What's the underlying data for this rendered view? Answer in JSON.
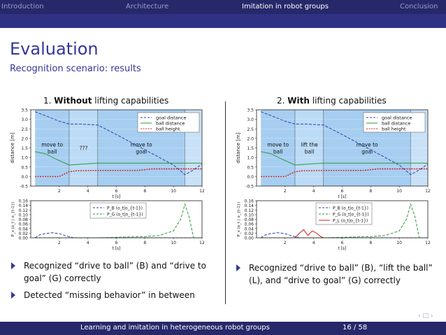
{
  "nav": {
    "items": [
      {
        "label": "Introduction",
        "active": false
      },
      {
        "label": "Architecture",
        "active": false
      },
      {
        "label": "Imitation in robot groups",
        "active": true
      },
      {
        "label": "Conclusion",
        "active": false
      }
    ]
  },
  "slide": {
    "title": "Evaluation",
    "subtitle": "Recognition scenario: results"
  },
  "panels": [
    {
      "number": "1.",
      "bold": "Without",
      "rest": "lifting capabilities"
    },
    {
      "number": "2.",
      "bold": "With",
      "rest": "lifting capabilities"
    }
  ],
  "bullets_left": [
    "Recognized “drive to ball” (B) and “drive to goal” (G) correctly",
    "Detected “missing behavior” in between"
  ],
  "bullets_right": [
    "Recognized “drive to ball” (B), “lift the ball” (L), and “drive to goal” (G) correctly"
  ],
  "footer": {
    "title": "Learning and imitation in heterogeneous robot groups",
    "page": "16 / 58"
  },
  "colors": {
    "accent": "#35359a",
    "bar": "#27286a",
    "goal_distance": "#2b3fb0",
    "ball_distance": "#2e9a3a",
    "ball_height": "#d41f1f",
    "highlight": "#9cc9f0"
  },
  "chart_data": [
    {
      "type": "line",
      "xlabel": "t [s]",
      "ylabel": "distance [m]",
      "xlim": [
        0,
        12
      ],
      "ylim": [
        -0.5,
        3.5
      ],
      "xticks": [
        "2",
        "4",
        "6",
        "8",
        "10",
        "12"
      ],
      "yticks": [
        "-0.5",
        "0.0",
        "0.5",
        "1.0",
        "1.5",
        "2.0",
        "2.5",
        "3.0",
        "3.5"
      ],
      "legend": "top-right",
      "regions": [
        {
          "label": "move to\nball",
          "x": [
            0.3,
            2.7
          ]
        },
        {
          "label": "???",
          "x": [
            2.7,
            4.7
          ]
        },
        {
          "label": "move to\ngoal",
          "x": [
            4.7,
            10.8
          ]
        }
      ],
      "series": [
        {
          "name": "goal distance",
          "style": "dashed",
          "x": [
            0.3,
            1.0,
            2.0,
            2.7,
            3.5,
            4.7,
            6,
            7,
            8,
            9,
            10,
            10.8,
            11.3,
            12
          ],
          "y": [
            3.4,
            3.2,
            2.9,
            2.75,
            2.75,
            2.7,
            2.2,
            1.8,
            1.4,
            1.0,
            0.6,
            0.1,
            0.3,
            0.65
          ]
        },
        {
          "name": "ball distance",
          "style": "solid",
          "x": [
            0.3,
            1.0,
            1.8,
            2.7,
            3.5,
            4.7,
            6,
            8,
            10,
            12
          ],
          "y": [
            1.3,
            1.2,
            0.9,
            0.6,
            0.65,
            0.7,
            0.7,
            0.7,
            0.7,
            0.7
          ]
        },
        {
          "name": "ball height",
          "style": "marker",
          "x": [
            0.3,
            2.0,
            2.7,
            3.2,
            4.7,
            6,
            7.5,
            8.5,
            9.5,
            10.8,
            12
          ],
          "y": [
            0.0,
            0.0,
            0.25,
            0.3,
            0.32,
            0.32,
            0.32,
            0.4,
            0.4,
            0.4,
            0.4
          ]
        }
      ]
    },
    {
      "type": "line",
      "xlabel": "t [s]",
      "ylabel": "P_x (o_t | o_{t-1})",
      "xlim": [
        0,
        12
      ],
      "ylim": [
        0,
        0.16
      ],
      "xticks": [
        "2",
        "4",
        "6",
        "8",
        "10",
        "12"
      ],
      "yticks": [
        "0.00",
        "0.02",
        "0.04",
        "0.06",
        "0.08",
        "0.10",
        "0.12",
        "0.14",
        "0.16"
      ],
      "legend": "top-center",
      "series": [
        {
          "name": "P_B (o_t|o_{t-1})",
          "style": "dashed",
          "x": [
            0.3,
            0.6,
            1.0,
            1.5,
            2.0,
            2.5,
            3.0,
            12
          ],
          "y": [
            0.0,
            0.012,
            0.018,
            0.022,
            0.018,
            0.008,
            0.0,
            0.0
          ]
        },
        {
          "name": "P_G (o_t|o_{t-1})",
          "style": "dashed",
          "x": [
            0.3,
            4.7,
            6,
            8,
            9,
            10,
            10.5,
            10.8,
            11.1,
            11.4,
            12
          ],
          "y": [
            0.0,
            0.0,
            0.002,
            0.005,
            0.01,
            0.03,
            0.08,
            0.145,
            0.09,
            0.0,
            0.0
          ]
        }
      ]
    },
    {
      "type": "line",
      "xlabel": "t [s]",
      "ylabel": "distance [m]",
      "xlim": [
        0,
        12
      ],
      "ylim": [
        -0.5,
        3.5
      ],
      "xticks": [
        "2",
        "4",
        "6",
        "8",
        "10",
        "12"
      ],
      "yticks": [
        "-0.5",
        "0.0",
        "0.5",
        "1.0",
        "1.5",
        "2.0",
        "2.5",
        "3.0",
        "3.5"
      ],
      "legend": "top-right",
      "regions": [
        {
          "label": "move to\nball",
          "x": [
            0.3,
            2.7
          ]
        },
        {
          "label": "lift the\nball",
          "x": [
            2.7,
            4.7
          ]
        },
        {
          "label": "move to\ngoal",
          "x": [
            4.7,
            10.8
          ]
        }
      ],
      "series": [
        {
          "name": "goal distance",
          "style": "dashed",
          "x": [
            0.3,
            1.0,
            2.0,
            2.7,
            3.5,
            4.7,
            6,
            7,
            8,
            9,
            10,
            10.8,
            11.3,
            12
          ],
          "y": [
            3.4,
            3.2,
            2.9,
            2.75,
            2.75,
            2.7,
            2.2,
            1.8,
            1.4,
            1.0,
            0.6,
            0.1,
            0.3,
            0.65
          ]
        },
        {
          "name": "ball distance",
          "style": "solid",
          "x": [
            0.3,
            1.0,
            1.8,
            2.7,
            3.5,
            4.7,
            6,
            8,
            10,
            12
          ],
          "y": [
            1.3,
            1.2,
            0.9,
            0.6,
            0.65,
            0.7,
            0.7,
            0.7,
            0.7,
            0.7
          ]
        },
        {
          "name": "ball height",
          "style": "marker",
          "x": [
            0.3,
            2.0,
            2.7,
            3.2,
            4.7,
            6,
            7.5,
            8.5,
            9.5,
            10.8,
            12
          ],
          "y": [
            0.0,
            0.0,
            0.25,
            0.3,
            0.32,
            0.32,
            0.32,
            0.4,
            0.4,
            0.4,
            0.4
          ]
        }
      ]
    },
    {
      "type": "line",
      "xlabel": "t [s]",
      "ylabel": "P_x (o_t | o_{t-1})",
      "xlim": [
        0,
        12
      ],
      "ylim": [
        0,
        0.16
      ],
      "xticks": [
        "2",
        "4",
        "6",
        "8",
        "10",
        "12"
      ],
      "yticks": [
        "0.00",
        "0.02",
        "0.04",
        "0.06",
        "0.08",
        "0.10",
        "0.12",
        "0.14",
        "0.16"
      ],
      "legend": "top-center",
      "series": [
        {
          "name": "P_B (o_t|o_{t-1})",
          "style": "dashed",
          "x": [
            0.3,
            0.6,
            1.0,
            1.5,
            2.0,
            2.5,
            3.0,
            12
          ],
          "y": [
            0.0,
            0.012,
            0.018,
            0.022,
            0.018,
            0.008,
            0.0,
            0.0
          ]
        },
        {
          "name": "P_G (o_t|o_{t-1})",
          "style": "dashed",
          "x": [
            0.3,
            4.7,
            6,
            8,
            9,
            10,
            10.5,
            10.8,
            11.1,
            11.4,
            12
          ],
          "y": [
            0.0,
            0.0,
            0.002,
            0.005,
            0.01,
            0.03,
            0.08,
            0.145,
            0.09,
            0.0,
            0.0
          ]
        },
        {
          "name": "P_L (o_t|o_{t-1})",
          "style": "solid",
          "x": [
            2.7,
            3.0,
            3.3,
            3.6,
            3.9,
            4.2,
            4.5,
            4.7
          ],
          "y": [
            0.0,
            0.02,
            0.035,
            0.01,
            0.03,
            0.02,
            0.005,
            0.0
          ]
        }
      ]
    }
  ]
}
